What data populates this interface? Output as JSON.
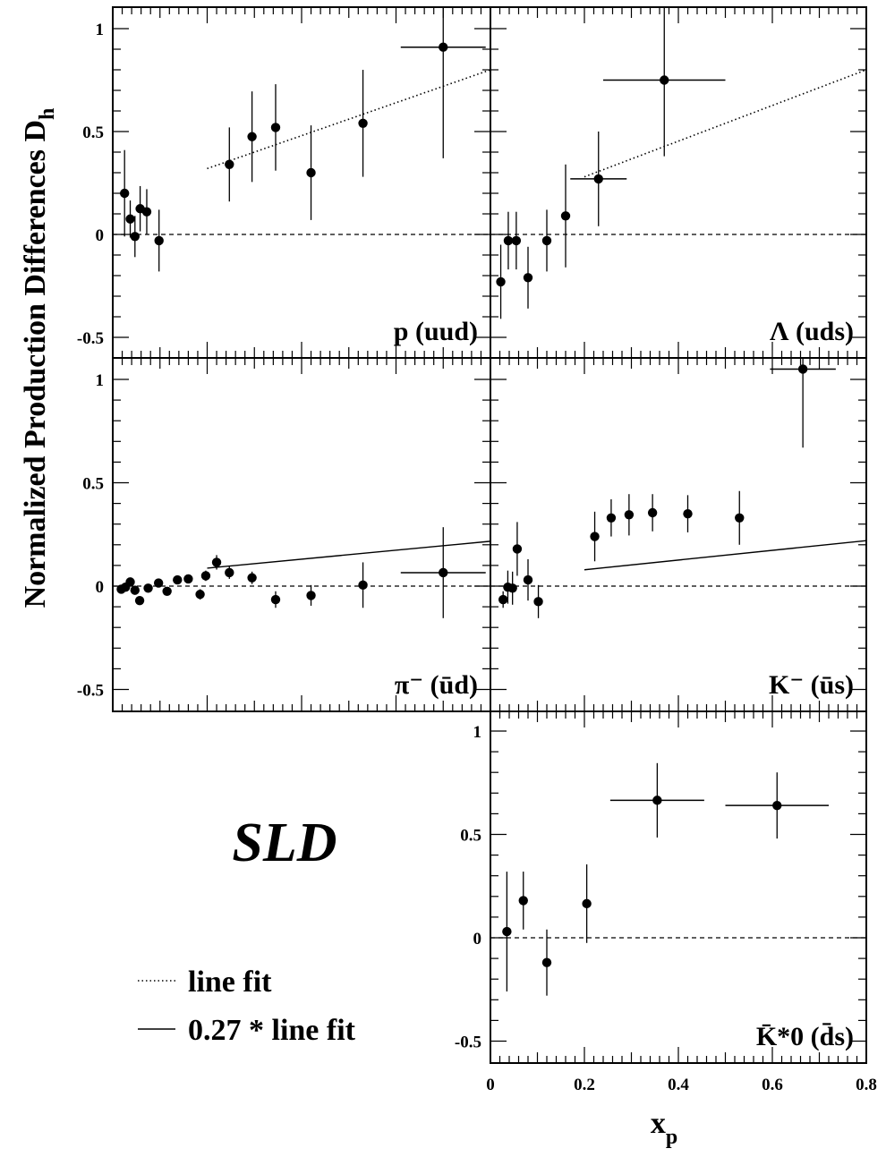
{
  "chart_data": {
    "type": "scatter",
    "ylabel": "Normalized Production Differences D",
    "ylabel_sub": "h",
    "xlabel": "x",
    "xlabel_sub": "p",
    "experiment_label": "SLD",
    "legend": [
      {
        "style": "dotted",
        "label": "line fit"
      },
      {
        "style": "solid",
        "label": "0.27 * line fit"
      }
    ],
    "x_range": [
      0,
      0.8
    ],
    "y_range": [
      -0.55,
      1.1
    ],
    "x_ticks": [
      "0",
      "0.2",
      "0.4",
      "0.6",
      "0.8"
    ],
    "y_ticks": [
      "-0.5",
      "0",
      "0.5",
      "1"
    ],
    "panels": [
      {
        "id": "p",
        "label": "p (uud)",
        "fit": {
          "style": "dotted",
          "x": [
            0.2,
            0.8
          ],
          "y": [
            0.32,
            0.8
          ]
        },
        "points": [
          {
            "x": 0.025,
            "y": 0.2,
            "err": 0.21,
            "xerr": 0
          },
          {
            "x": 0.037,
            "y": 0.075,
            "err": 0.09,
            "xerr": 0
          },
          {
            "x": 0.047,
            "y": -0.01,
            "err": 0.1,
            "xerr": 0
          },
          {
            "x": 0.058,
            "y": 0.125,
            "err": 0.11,
            "xerr": 0
          },
          {
            "x": 0.072,
            "y": 0.11,
            "err": 0.11,
            "xerr": 0
          },
          {
            "x": 0.098,
            "y": -0.03,
            "err": 0.15,
            "xerr": 0
          },
          {
            "x": 0.247,
            "y": 0.34,
            "err": 0.18,
            "xerr": 0
          },
          {
            "x": 0.295,
            "y": 0.475,
            "err": 0.22,
            "xerr": 0
          },
          {
            "x": 0.345,
            "y": 0.52,
            "err": 0.21,
            "xerr": 0
          },
          {
            "x": 0.42,
            "y": 0.3,
            "err": 0.23,
            "xerr": 0
          },
          {
            "x": 0.53,
            "y": 0.54,
            "err": 0.26,
            "xerr": 0
          },
          {
            "x": 0.7,
            "y": 0.91,
            "err": 0.54,
            "xerr": 0.09
          }
        ]
      },
      {
        "id": "lambda",
        "label": "Λ (uds)",
        "fit": {
          "style": "dotted",
          "x": [
            0.2,
            0.8
          ],
          "y": [
            0.28,
            0.8
          ]
        },
        "points": [
          {
            "x": 0.022,
            "y": -0.23,
            "err": 0.18,
            "xerr": 0
          },
          {
            "x": 0.038,
            "y": -0.03,
            "err": 0.14,
            "xerr": 0
          },
          {
            "x": 0.055,
            "y": -0.03,
            "err": 0.14,
            "xerr": 0
          },
          {
            "x": 0.08,
            "y": -0.21,
            "err": 0.15,
            "xerr": 0
          },
          {
            "x": 0.12,
            "y": -0.03,
            "err": 0.15,
            "xerr": 0
          },
          {
            "x": 0.16,
            "y": 0.09,
            "err": 0.25,
            "xerr": 0
          },
          {
            "x": 0.23,
            "y": 0.27,
            "err": 0.23,
            "xerr": 0.06
          },
          {
            "x": 0.37,
            "y": 0.75,
            "err": 0.37,
            "xerr": 0.13
          }
        ]
      },
      {
        "id": "piminus",
        "label": "π⁻ (ūd)",
        "fit": {
          "style": "solid",
          "x": [
            0.2,
            0.8
          ],
          "y": [
            0.087,
            0.217
          ]
        },
        "points": [
          {
            "x": 0.018,
            "y": -0.015,
            "err": 0.02,
            "xerr": 0
          },
          {
            "x": 0.027,
            "y": -0.005,
            "err": 0.02,
            "xerr": 0
          },
          {
            "x": 0.037,
            "y": 0.02,
            "err": 0.02,
            "xerr": 0
          },
          {
            "x": 0.047,
            "y": -0.02,
            "err": 0.02,
            "xerr": 0
          },
          {
            "x": 0.057,
            "y": -0.07,
            "err": 0.02,
            "xerr": 0
          },
          {
            "x": 0.075,
            "y": -0.01,
            "err": 0.02,
            "xerr": 0
          },
          {
            "x": 0.097,
            "y": 0.015,
            "err": 0.02,
            "xerr": 0
          },
          {
            "x": 0.115,
            "y": -0.025,
            "err": 0.02,
            "xerr": 0
          },
          {
            "x": 0.137,
            "y": 0.03,
            "err": 0.02,
            "xerr": 0
          },
          {
            "x": 0.16,
            "y": 0.035,
            "err": 0.02,
            "xerr": 0
          },
          {
            "x": 0.185,
            "y": -0.04,
            "err": 0.025,
            "xerr": 0
          },
          {
            "x": 0.197,
            "y": 0.05,
            "err": 0.025,
            "xerr": 0
          },
          {
            "x": 0.22,
            "y": 0.115,
            "err": 0.035,
            "xerr": 0
          },
          {
            "x": 0.247,
            "y": 0.065,
            "err": 0.03,
            "xerr": 0
          },
          {
            "x": 0.295,
            "y": 0.04,
            "err": 0.03,
            "xerr": 0
          },
          {
            "x": 0.345,
            "y": -0.065,
            "err": 0.04,
            "xerr": 0
          },
          {
            "x": 0.42,
            "y": -0.045,
            "err": 0.05,
            "xerr": 0
          },
          {
            "x": 0.53,
            "y": 0.005,
            "err": 0.11,
            "xerr": 0
          },
          {
            "x": 0.7,
            "y": 0.065,
            "err": 0.22,
            "xerr": 0.09
          }
        ]
      },
      {
        "id": "kminus",
        "label": "K⁻ (ūs)",
        "fit": {
          "style": "solid",
          "x": [
            0.2,
            0.8
          ],
          "y": [
            0.079,
            0.22
          ]
        },
        "points": [
          {
            "x": 0.027,
            "y": -0.065,
            "err": 0.04,
            "xerr": 0
          },
          {
            "x": 0.037,
            "y": -0.005,
            "err": 0.08,
            "xerr": 0
          },
          {
            "x": 0.047,
            "y": -0.01,
            "err": 0.08,
            "xerr": 0
          },
          {
            "x": 0.057,
            "y": 0.18,
            "err": 0.13,
            "xerr": 0
          },
          {
            "x": 0.08,
            "y": 0.03,
            "err": 0.1,
            "xerr": 0
          },
          {
            "x": 0.102,
            "y": -0.075,
            "err": 0.08,
            "xerr": 0
          },
          {
            "x": 0.222,
            "y": 0.24,
            "err": 0.12,
            "xerr": 0
          },
          {
            "x": 0.257,
            "y": 0.33,
            "err": 0.09,
            "xerr": 0
          },
          {
            "x": 0.295,
            "y": 0.345,
            "err": 0.1,
            "xerr": 0
          },
          {
            "x": 0.345,
            "y": 0.355,
            "err": 0.09,
            "xerr": 0
          },
          {
            "x": 0.42,
            "y": 0.35,
            "err": 0.09,
            "xerr": 0
          },
          {
            "x": 0.53,
            "y": 0.33,
            "err": 0.13,
            "xerr": 0
          },
          {
            "x": 0.665,
            "y": 1.05,
            "err": 0.38,
            "xerr": 0.07
          }
        ]
      },
      {
        "id": "kstar0bar",
        "label": "K̄*0 (d̄s)",
        "fit": null,
        "points": [
          {
            "x": 0.035,
            "y": 0.03,
            "err": 0.29,
            "xerr": 0
          },
          {
            "x": 0.07,
            "y": 0.18,
            "err": 0.14,
            "xerr": 0
          },
          {
            "x": 0.12,
            "y": -0.12,
            "err": 0.16,
            "xerr": 0
          },
          {
            "x": 0.205,
            "y": 0.165,
            "err": 0.19,
            "xerr": 0
          },
          {
            "x": 0.355,
            "y": 0.665,
            "err": 0.18,
            "xerr": 0.1
          },
          {
            "x": 0.61,
            "y": 0.64,
            "err": 0.16,
            "xerr": 0.11
          }
        ]
      }
    ]
  }
}
